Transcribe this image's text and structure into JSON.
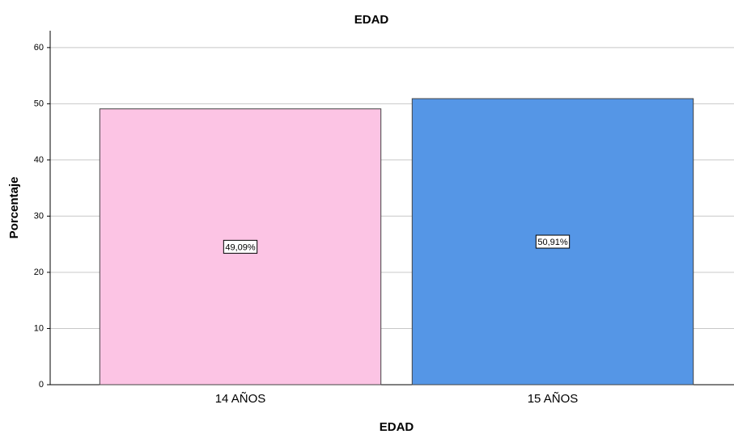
{
  "chart_data": {
    "type": "bar",
    "title": "EDAD",
    "x_label": "EDAD",
    "y_label": "Porcentaje",
    "categories": [
      "14 AÑOS",
      "15 AÑOS"
    ],
    "values": [
      49.09,
      50.91
    ],
    "value_labels": [
      "49,09%",
      "50,91%"
    ],
    "colors": [
      "#fcc4e4",
      "#5596e6"
    ],
    "ylim": [
      0,
      63
    ],
    "yticks": [
      0,
      10,
      20,
      30,
      40,
      50,
      60
    ],
    "grid": true
  }
}
